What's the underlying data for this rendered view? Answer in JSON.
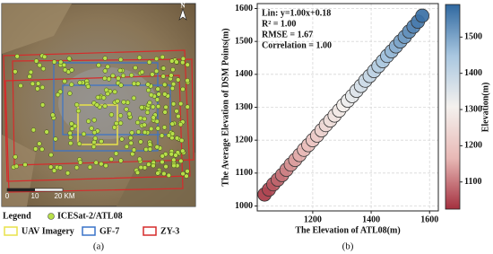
{
  "map": {
    "north": "N",
    "scale_labels": [
      "0",
      "10",
      "20 KM"
    ],
    "legend_title": "Legend",
    "legend": [
      "ICESat-2/ATL08",
      "UAV Imagery",
      "GF-7",
      "ZY-3"
    ],
    "panel_label": "(a)"
  },
  "chart_data": {
    "type": "scatter",
    "panel_label": "(b)",
    "xlabel": "The Elevation of ATL08(m)",
    "ylabel": "The Average Elevation of DSM Points(m)",
    "annotations": [
      "Lin: y=1.00x+0.18",
      "R² = 1.00",
      "RMSE = 1.67",
      "Correlation = 1.00"
    ],
    "x": [
      1035,
      1050,
      1065,
      1080,
      1095,
      1110,
      1125,
      1140,
      1155,
      1170,
      1185,
      1200,
      1215,
      1230,
      1245,
      1260,
      1275,
      1290,
      1305,
      1320,
      1335,
      1350,
      1365,
      1380,
      1395,
      1410,
      1425,
      1440,
      1455,
      1470,
      1485,
      1500,
      1515,
      1530,
      1545,
      1560,
      1575
    ],
    "values": [
      1035,
      1050,
      1066,
      1080,
      1094,
      1110,
      1126,
      1140,
      1155,
      1171,
      1185,
      1200,
      1214,
      1230,
      1246,
      1260,
      1275,
      1290,
      1306,
      1320,
      1334,
      1350,
      1365,
      1381,
      1395,
      1410,
      1425,
      1440,
      1456,
      1470,
      1485,
      1500,
      1514,
      1530,
      1545,
      1560,
      1578
    ],
    "xlim": [
      1010,
      1630
    ],
    "ylim": [
      985,
      1615
    ],
    "xticks": [
      1200,
      1400,
      1600
    ],
    "yticks": [
      1000,
      1100,
      1200,
      1300,
      1400,
      1500,
      1600
    ],
    "grid": true,
    "marker_edge": "#333333",
    "colorbar": {
      "label": "Elevation(m)",
      "lim": [
        1025,
        1590
      ],
      "ticks": [
        1100,
        1200,
        1300,
        1400,
        1500
      ],
      "colors": [
        "#a4303f",
        "#e8b9b6",
        "#f4f1ee",
        "#a9c7e0",
        "#2f68a0"
      ]
    }
  }
}
